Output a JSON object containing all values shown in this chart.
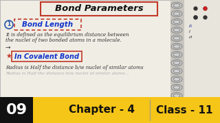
{
  "bg_color": "#7a7a72",
  "page_bg": "#f0ede4",
  "title_text": "Bond Parameters",
  "title_box_color": "#c0392b",
  "section1_box_color": "#c0392b",
  "section1_num_color": "#2255aa",
  "section1_text": "Bond Length",
  "body1_line1": "It is defined as the equilibrium distance between",
  "body1_line2": "the nuclei of two bonded atoms in a molecule.",
  "arrow_text": "→",
  "star_color": "#c0392b",
  "section2_text": "In Covalent Bond",
  "section2_box_color": "#c0392b",
  "body2_line1": "Radius is Half the distance b/w nuclei of similar atoms",
  "bottom_bar_color": "#f5c518",
  "bottom_text_color": "#111111",
  "num_text": "09",
  "chapter_text": "Chapter - 4",
  "class_text": "Class - 11",
  "body_text_color": "#333333",
  "spiral_fg": "#cccccc",
  "spiral_edge": "#888888",
  "right_page_bg": "#e8e4dc",
  "dot_color_red": "#cc2222",
  "dot_color_dark": "#333333"
}
